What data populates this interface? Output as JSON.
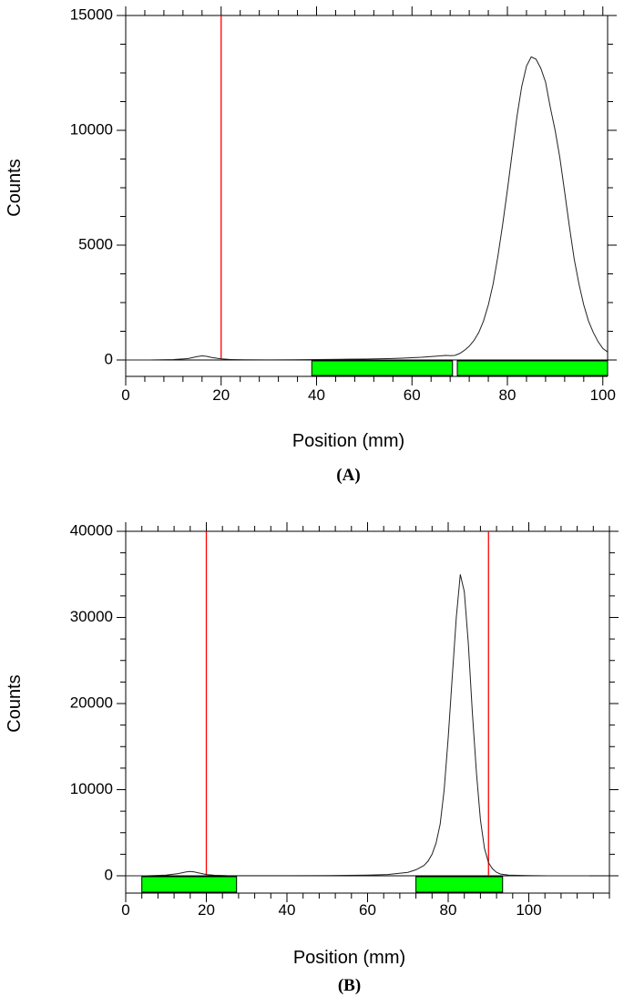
{
  "chart_data": [
    {
      "type": "line",
      "panel_label": "(A)",
      "xlabel": "Position (mm)",
      "ylabel": "Counts",
      "xlim": [
        0,
        101
      ],
      "ylim": [
        0,
        15000
      ],
      "xticks": [
        0,
        20,
        40,
        60,
        80,
        100
      ],
      "yticks": [
        0,
        5000,
        10000,
        15000
      ],
      "x_minor_step": 4,
      "y_minor_step": 1250,
      "marker_lines_x": [
        20
      ],
      "regions": [
        {
          "start": 39,
          "end": 68.5
        },
        {
          "start": 69.5,
          "end": 101
        }
      ],
      "region_color": "#00ff00",
      "marker_color": "#ff0000",
      "series": [
        {
          "x": [
            0,
            5,
            10,
            13,
            15,
            16,
            17,
            18,
            20,
            22,
            25,
            30,
            35,
            40,
            45,
            50,
            55,
            58,
            60,
            62,
            64,
            66,
            67,
            68,
            69,
            70,
            71,
            72,
            73,
            74,
            75,
            76,
            77,
            78,
            79,
            80,
            81,
            82,
            83,
            84,
            85,
            86,
            87,
            88,
            89,
            90,
            91,
            92,
            93,
            94,
            95,
            96,
            97,
            98,
            99,
            100,
            101
          ],
          "y": [
            0,
            0,
            20,
            60,
            150,
            180,
            160,
            110,
            50,
            20,
            10,
            5,
            10,
            20,
            30,
            40,
            60,
            80,
            100,
            120,
            150,
            180,
            200,
            190,
            200,
            280,
            420,
            600,
            850,
            1200,
            1700,
            2400,
            3300,
            4500,
            5900,
            7400,
            9000,
            10600,
            11900,
            12800,
            13200,
            13100,
            12700,
            12100,
            11000,
            10000,
            8800,
            7300,
            5800,
            4400,
            3300,
            2400,
            1700,
            1200,
            800,
            500,
            350
          ]
        }
      ]
    },
    {
      "type": "line",
      "panel_label": "(B)",
      "xlabel": "Position (mm)",
      "ylabel": "Counts",
      "xlim": [
        0,
        120
      ],
      "ylim": [
        0,
        40000
      ],
      "xticks": [
        0,
        20,
        40,
        60,
        80,
        100
      ],
      "yticks": [
        0,
        10000,
        20000,
        30000,
        40000
      ],
      "x_minor_step": 4,
      "y_minor_step": 2500,
      "marker_lines_x": [
        20,
        90
      ],
      "regions": [
        {
          "start": 4,
          "end": 27.5
        },
        {
          "start": 72,
          "end": 93.5
        }
      ],
      "region_color": "#00ff00",
      "marker_color": "#ff0000",
      "series": [
        {
          "x": [
            0,
            5,
            10,
            13,
            15,
            16,
            17,
            18,
            20,
            22,
            25,
            30,
            35,
            40,
            50,
            60,
            65,
            70,
            72,
            74,
            75,
            76,
            77,
            78,
            79,
            80,
            81,
            82,
            83,
            84,
            85,
            86,
            87,
            88,
            89,
            90,
            91,
            92,
            93,
            95,
            100,
            105,
            110,
            115
          ],
          "y": [
            0,
            0,
            80,
            250,
            450,
            500,
            450,
            350,
            150,
            60,
            20,
            10,
            10,
            10,
            30,
            80,
            150,
            400,
            700,
            1200,
            1700,
            2500,
            3800,
            6000,
            10000,
            16000,
            23000,
            30000,
            35000,
            33000,
            27000,
            19000,
            12000,
            6500,
            3200,
            1500,
            800,
            400,
            200,
            80,
            20,
            5,
            0,
            0
          ]
        }
      ]
    }
  ]
}
